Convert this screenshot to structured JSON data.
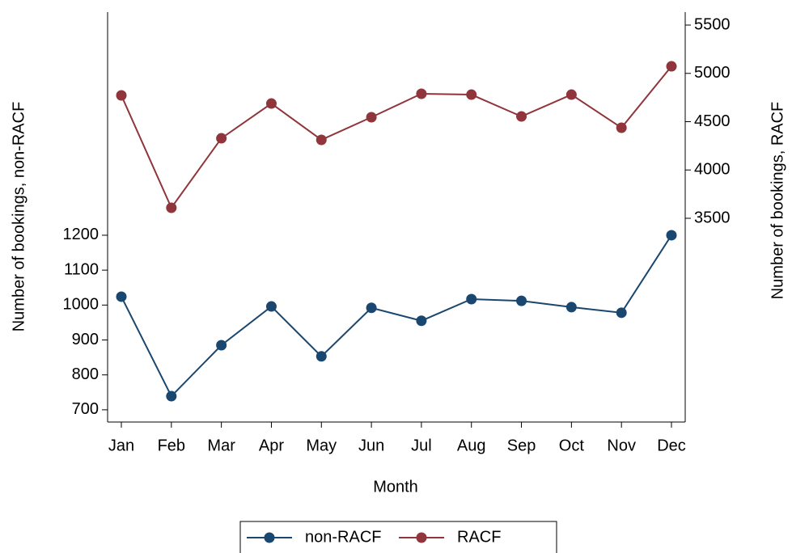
{
  "chart_data": {
    "type": "line",
    "x_label": "Month",
    "y_label": "Number of bookings, non-RACF",
    "y2_label": "Number of bookings, RACF",
    "categories": [
      "Jan",
      "Feb",
      "Mar",
      "Apr",
      "May",
      "Jun",
      "Jul",
      "Aug",
      "Sep",
      "Oct",
      "Nov",
      "Dec"
    ],
    "series": [
      {
        "name": "non-RACF",
        "color": "#1a476f",
        "values": [
          1024,
          739,
          885,
          996,
          853,
          992,
          955,
          1017,
          1012,
          994,
          978,
          1200
        ]
      },
      {
        "name": "RACF",
        "color": "#90353b",
        "axis": "y2",
        "values": [
          4772,
          3609,
          4328,
          4688,
          4312,
          4546,
          4789,
          4780,
          4554,
          4780,
          4437,
          5073
        ]
      }
    ],
    "ylim": [
      665,
      1839
    ],
    "yticks": [
      700,
      800,
      900,
      1000,
      1100,
      1200
    ],
    "y2lim": [
      1391,
      5634
    ],
    "y2ticks": [
      3500,
      4000,
      4500,
      5000,
      5500
    ],
    "grid": false,
    "legend": "bottom"
  }
}
